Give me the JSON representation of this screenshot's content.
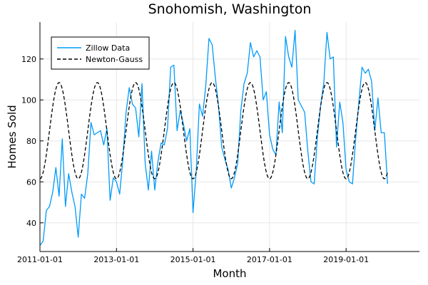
{
  "colors": {
    "zillow": "#009af9",
    "newton": "#000000",
    "grid": "#e6e6e6"
  },
  "chart_data": {
    "type": "line",
    "title": "Snohomish, Washington",
    "xlabel": "Month",
    "ylabel": "Homes Sold",
    "x_range": [
      "2011-01-01",
      "2020-12-01"
    ],
    "ylim": [
      26,
      138
    ],
    "x_ticks": [
      "2011-01-01",
      "2013-01-01",
      "2015-01-01",
      "2017-01-01",
      "2019-01-01"
    ],
    "y_ticks": [
      40,
      60,
      80,
      100,
      120
    ],
    "grid": true,
    "legend_position": "top-left",
    "series": [
      {
        "name": "Zillow Data",
        "style": "solid",
        "start": "2011-01-01",
        "frequency": "monthly",
        "values": [
          29,
          31,
          46,
          48,
          55,
          67,
          53,
          81,
          48,
          64,
          55,
          48,
          33,
          54,
          52,
          64,
          89,
          83,
          84,
          85,
          78,
          86,
          51,
          62,
          60,
          54,
          71,
          94,
          106,
          98,
          96,
          82,
          108,
          69,
          56,
          75,
          56,
          70,
          79,
          78,
          86,
          116,
          117,
          85,
          95,
          88,
          80,
          86,
          45,
          65,
          98,
          92,
          107,
          130,
          127,
          111,
          97,
          77,
          71,
          66,
          57,
          62,
          69,
          95,
          108,
          113,
          128,
          121,
          124,
          121,
          100,
          104,
          83,
          76,
          73,
          99,
          84,
          131,
          121,
          116,
          134,
          100,
          97,
          94,
          75,
          60,
          59,
          82,
          97,
          108,
          133,
          120,
          121,
          77,
          99,
          89,
          66,
          60,
          59,
          81,
          99,
          116,
          113,
          115,
          109,
          85,
          101,
          84,
          84,
          59
        ]
      },
      {
        "name": "Newton-Gauss",
        "style": "dashed",
        "start": "2011-01-01",
        "frequency": "monthly",
        "periodic": {
          "type": "sinusoid",
          "mean": 85,
          "amplitude": 23.5,
          "period_months": 12,
          "peak_month_of_year": 7
        }
      }
    ]
  }
}
